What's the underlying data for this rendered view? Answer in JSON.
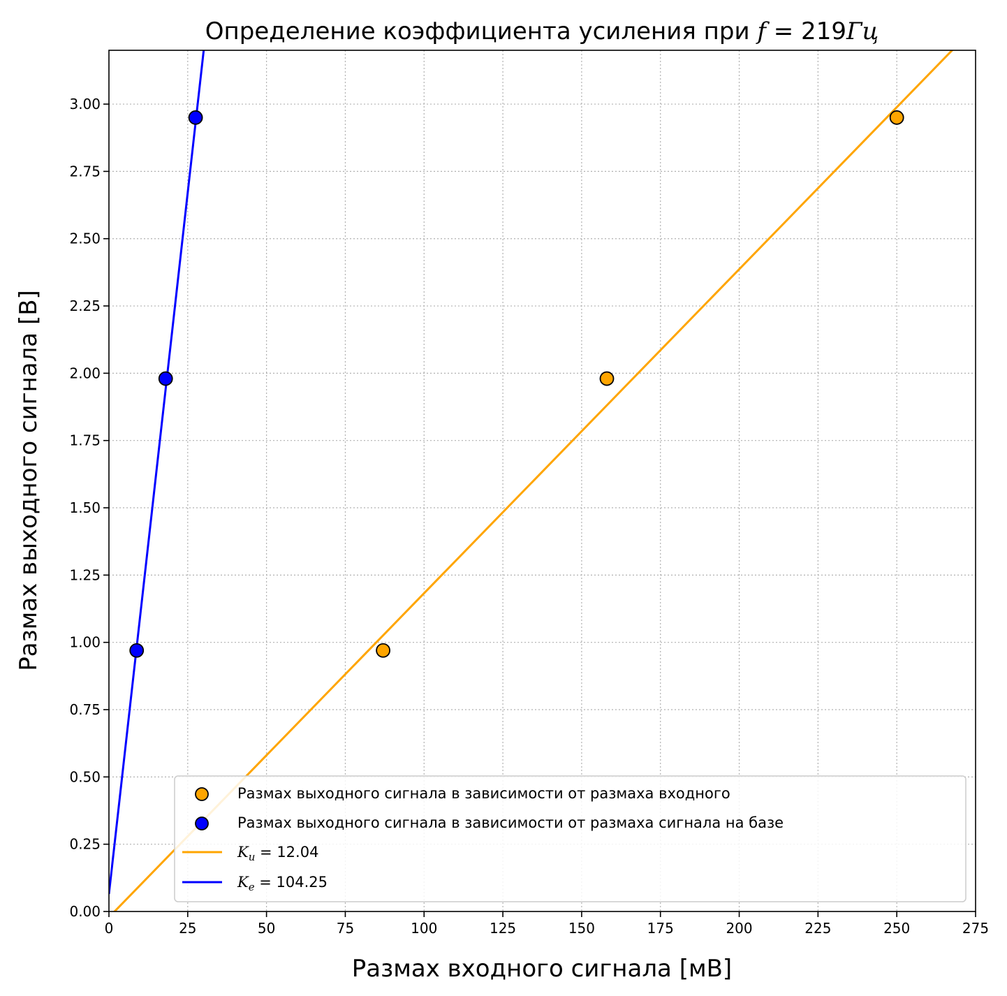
{
  "chart_data": {
    "type": "scatter",
    "title": "Определение коэффициента усиления при",
    "title_math": {
      "var": "f",
      "eq": " = 219",
      "unit": "Гц"
    },
    "xlabel": "Размах входного сигнала [мВ]",
    "ylabel": "Размах выходного сигнала [В]",
    "xlim": [
      0,
      275
    ],
    "ylim": [
      0,
      3.2
    ],
    "xticks": [
      0,
      25,
      50,
      75,
      100,
      125,
      150,
      175,
      200,
      225,
      250,
      275
    ],
    "yticks": [
      0.0,
      0.25,
      0.5,
      0.75,
      1.0,
      1.25,
      1.5,
      1.75,
      2.0,
      2.25,
      2.5,
      2.75,
      3.0
    ],
    "grid": true,
    "legend_position": "lower-right",
    "series": [
      {
        "name": "Размах выходного сигнала в зависимости от размаха входного",
        "kind": "scatter",
        "color": "#FFA500",
        "x": [
          87,
          158,
          250
        ],
        "y": [
          0.97,
          1.98,
          2.95
        ]
      },
      {
        "name": "Размах выходного сигнала в зависимости от размаха сигнала на базе",
        "kind": "scatter",
        "color": "#0000FF",
        "x": [
          8.8,
          18,
          27.5
        ],
        "y": [
          0.97,
          1.98,
          2.95
        ]
      },
      {
        "name": "K_u = 12.04",
        "label_math": {
          "sym": "K",
          "sub": "u",
          "eq": " = 12.04"
        },
        "kind": "line",
        "color": "#FFA500",
        "slope_per_mV": 0.01204,
        "intercept": -0.0215
      },
      {
        "name": "K_e = 104.25",
        "label_math": {
          "sym": "K",
          "sub": "e",
          "eq": " = 104.25"
        },
        "kind": "line",
        "color": "#0000FF",
        "slope_per_mV": 0.10425,
        "intercept": 0.065
      }
    ]
  }
}
